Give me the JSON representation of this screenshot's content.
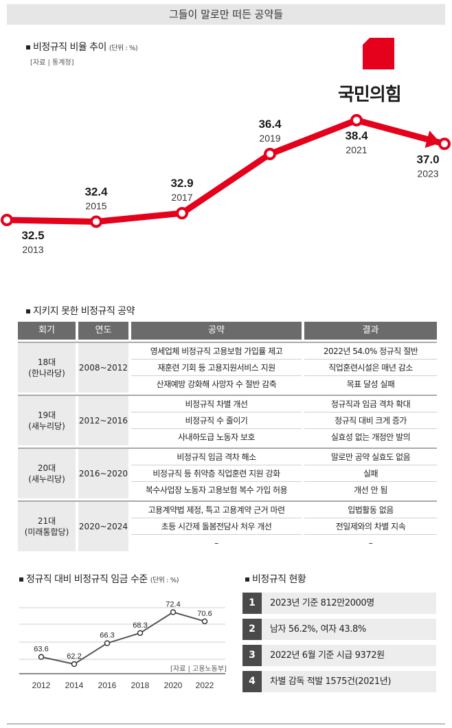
{
  "header": {
    "title": "그들이 말로만 떠든 공약들"
  },
  "chart1_section": {
    "title": "비정규직 비율 추이",
    "unit": "(단위 : %)",
    "source": "[자료 | 통계청]"
  },
  "logo": {
    "text": "국민의힘",
    "color": "#e5001c"
  },
  "promises": {
    "title": "지키지 못한 비정규직 공약",
    "columns": [
      "회기",
      "연도",
      "공약",
      "결과"
    ],
    "groups": [
      {
        "term": "18대\n(한나라당)",
        "years": "2008~2012",
        "pledges": [
          "영세업체 비정규직 고용보험 가입률 제고",
          "재훈련 기회 등 고용지원서비스 지원",
          "산재예방 강화해 사망자 수 절반 감축"
        ],
        "results": [
          "2022년 54.0% 정규직 절반",
          "직업훈련시설은 매년 감소",
          "목표 달성 실패"
        ]
      },
      {
        "term": "19대\n(새누리당)",
        "years": "2012~2016",
        "pledges": [
          "비정규직 차별 개선",
          "비정규직 수 줄이기",
          "사내하도급 노동자 보호"
        ],
        "results": [
          "정규직과 임금 격차 확대",
          "정규직 대비 크게 증가",
          "실효성 없는 개정안 발의"
        ]
      },
      {
        "term": "20대\n(새누리당)",
        "years": "2016~2020",
        "pledges": [
          "비정규직 임금 격차 해소",
          "비정규직 등 취약층 직업훈련 지원 강화",
          "복수사업장 노동자 고용보험 복수 가입 허용"
        ],
        "results": [
          "말로만 공약 실효도 없음",
          "실패",
          "개선 안 됨"
        ]
      },
      {
        "term": "21대\n(미래통합당)",
        "years": "2020~2024",
        "pledges": [
          "고용계약법 제정, 특고 고용계약 근거 마련",
          "초등 시간제 돌봄전담사 처우 개선",
          "–"
        ],
        "results": [
          "입법활동 없음",
          "전일제와의 차별 지속",
          "–"
        ]
      }
    ]
  },
  "chart2_section": {
    "title": "정규직 대비 비정규직 임금 수준",
    "unit": "(단위 : %)",
    "source": "[자료 | 고용노동부]"
  },
  "status": {
    "title": "비정규직 현황",
    "items": [
      {
        "num": "1",
        "text": "2023년 기준 812만2000명"
      },
      {
        "num": "2",
        "text": "남자 56.2%, 여자 43.8%"
      },
      {
        "num": "3",
        "text": "2022년 6월 기준 시급 9372원"
      },
      {
        "num": "4",
        "text": "차별 감독 적발 1575건(2021년)"
      }
    ]
  },
  "chart_data": [
    {
      "type": "line",
      "title": "비정규직 비율 추이",
      "unit": "%",
      "x": [
        "2013",
        "2015",
        "2017",
        "2019",
        "2021",
        "2023"
      ],
      "values": [
        32.5,
        32.4,
        32.9,
        36.4,
        38.4,
        37.0
      ],
      "data_labels": [
        "32.5",
        "32.4",
        "32.9",
        "36.4",
        "38.4",
        "37.0"
      ],
      "line_color": "#e5001c"
    },
    {
      "type": "line",
      "title": "정규직 대비 비정규직 임금 수준",
      "unit": "%",
      "x": [
        "2012",
        "2014",
        "2016",
        "2018",
        "2020",
        "2022"
      ],
      "values": [
        63.6,
        62.2,
        66.3,
        68.3,
        72.4,
        70.6
      ],
      "data_labels": [
        "63.6",
        "62.2",
        "66.3",
        "68.3",
        "72.4",
        "70.6"
      ],
      "grid": true,
      "line_color": "#555555"
    }
  ]
}
